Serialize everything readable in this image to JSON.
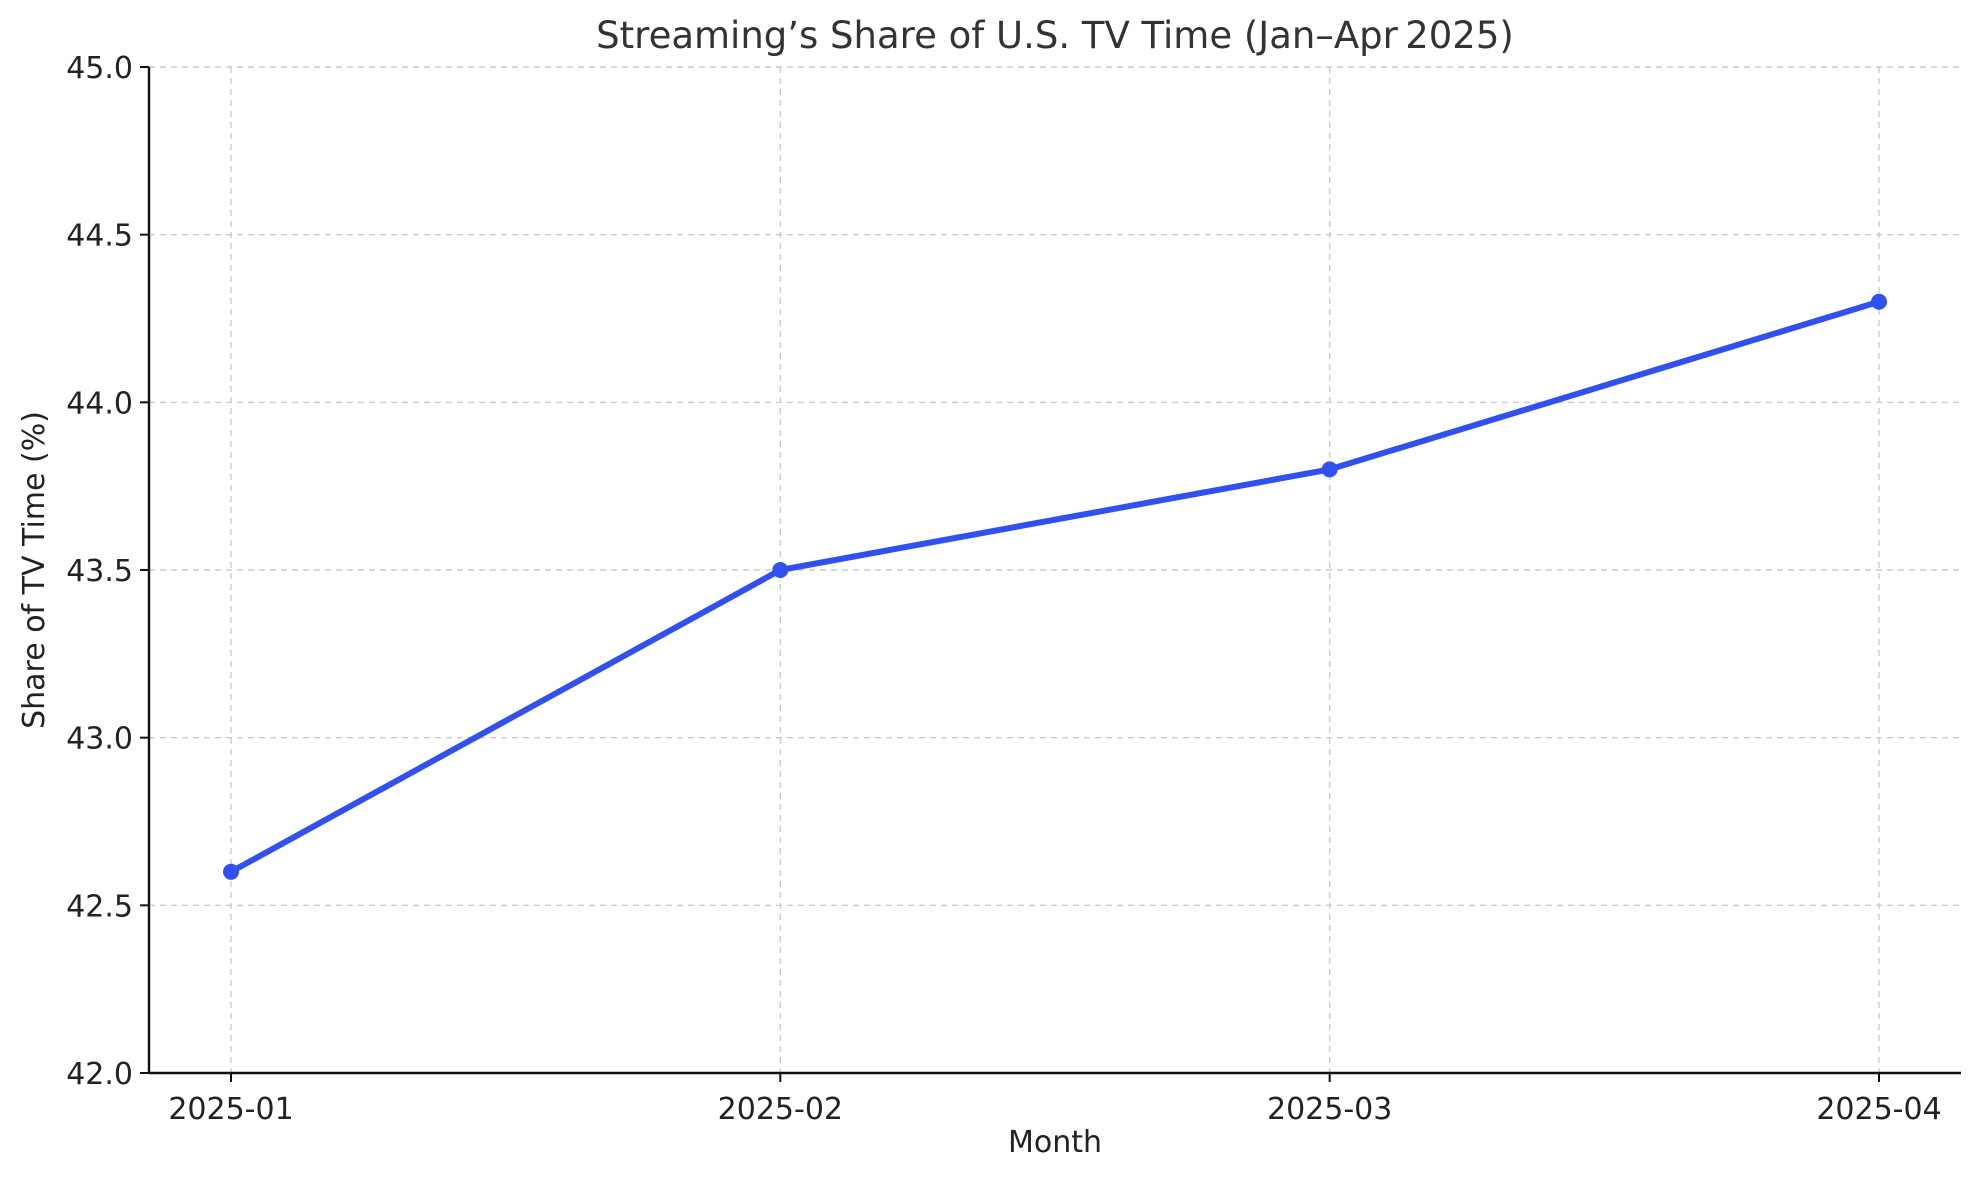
{
  "chart_data": {
    "type": "line",
    "title": "Streaming’s Share of U.S. TV Time (Jan–Apr 2025)",
    "xlabel": "Month",
    "ylabel": "Share of TV Time (%)",
    "categories": [
      "2025-01",
      "2025-02",
      "2025-03",
      "2025-04"
    ],
    "series": [
      {
        "values": [
          42.6,
          43.5,
          43.8,
          44.3
        ],
        "color": "#3050f0"
      }
    ],
    "ylim": [
      42.0,
      45.0
    ],
    "yticks": [
      "42.0",
      "42.5",
      "43.0",
      "43.5",
      "44.0",
      "44.5",
      "45.0"
    ],
    "grid": true,
    "legend": "none"
  }
}
